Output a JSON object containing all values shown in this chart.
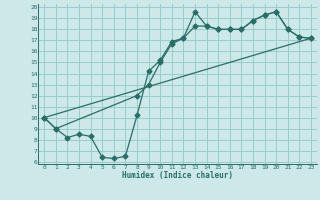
{
  "title": "",
  "xlabel": "Humidex (Indice chaleur)",
  "bg_color": "#cce8e8",
  "grid_color": "#99cccc",
  "line_color": "#2a6e68",
  "xlim": [
    -0.5,
    23.5
  ],
  "ylim": [
    5.8,
    20.3
  ],
  "xticks": [
    0,
    1,
    2,
    3,
    4,
    5,
    6,
    7,
    8,
    9,
    10,
    11,
    12,
    13,
    14,
    15,
    16,
    17,
    18,
    19,
    20,
    21,
    22,
    23
  ],
  "yticks": [
    6,
    7,
    8,
    9,
    10,
    11,
    12,
    13,
    14,
    15,
    16,
    17,
    18,
    19,
    20
  ],
  "line1_x": [
    0,
    1,
    2,
    3,
    4,
    5,
    6,
    7,
    8,
    9,
    10,
    11,
    12,
    13,
    14,
    15,
    16,
    17,
    18,
    19,
    20,
    21,
    22,
    23
  ],
  "line1_y": [
    10.0,
    9.0,
    8.2,
    8.5,
    8.3,
    6.4,
    6.3,
    6.5,
    10.2,
    14.2,
    15.2,
    16.9,
    17.2,
    19.6,
    18.3,
    18.0,
    18.0,
    18.0,
    18.8,
    19.3,
    19.6,
    18.0,
    17.3,
    17.2
  ],
  "line2_x": [
    0,
    23
  ],
  "line2_y": [
    10.0,
    17.2
  ],
  "line3_x": [
    0,
    1,
    8,
    9,
    10,
    11,
    12,
    13,
    14,
    15,
    16,
    17,
    18,
    19,
    20,
    21,
    22,
    23
  ],
  "line3_y": [
    10.0,
    9.0,
    12.0,
    13.0,
    15.0,
    16.7,
    17.2,
    18.3,
    18.3,
    18.0,
    18.0,
    18.0,
    18.8,
    19.3,
    19.6,
    18.0,
    17.3,
    17.2
  ],
  "marker": "D",
  "markersize": 2.5
}
